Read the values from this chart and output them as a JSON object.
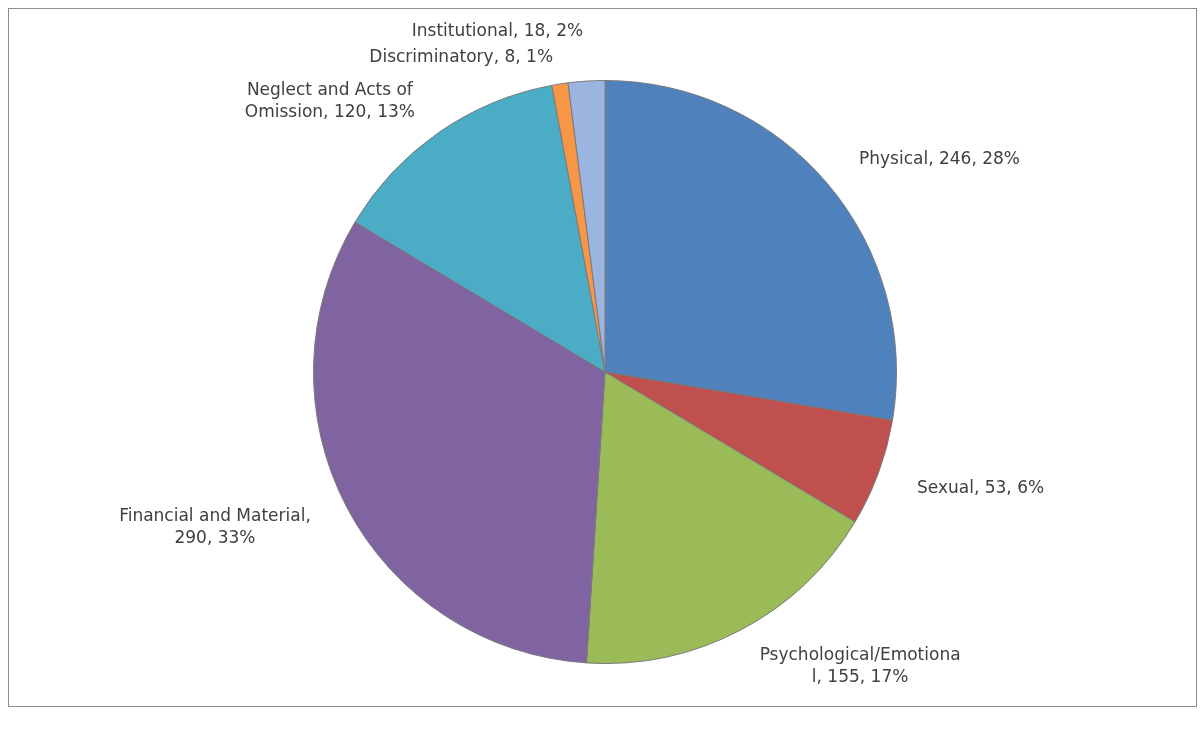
{
  "chart_data": {
    "type": "pie",
    "categories": [
      "Physical",
      "Sexual",
      "Psychological/Emotional",
      "Financial and Material",
      "Neglect and Acts of Omission",
      "Discriminatory",
      "Institutional"
    ],
    "values": [
      246,
      53,
      155,
      290,
      120,
      8,
      18
    ],
    "colors": [
      "#4f81bd",
      "#c0504d",
      "#9bbb59",
      "#8064a2",
      "#4bacc6",
      "#f79646",
      "#9cb4e0"
    ],
    "value_labels": [
      ", 246, 28%",
      ", 53, 6%",
      ", 155, 17%",
      ", 290, 33%",
      ", 120, 13%",
      ", 8, 1%",
      ", 18, 2%"
    ]
  }
}
